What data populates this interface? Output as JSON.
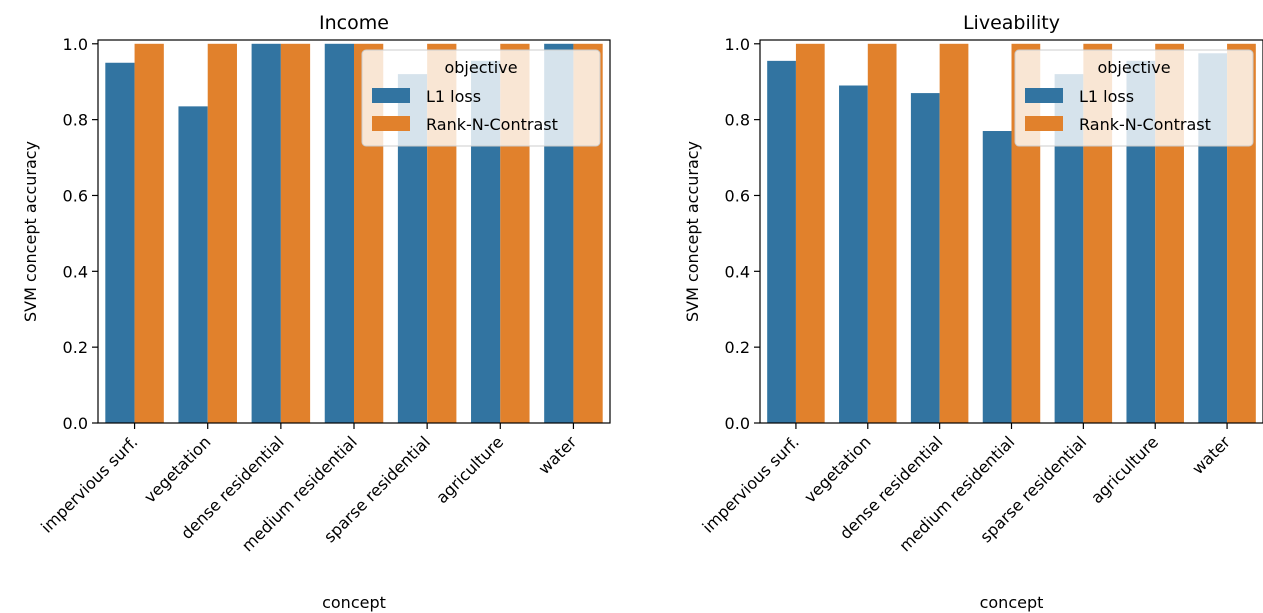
{
  "chart_data": [
    {
      "type": "bar",
      "title": "Income",
      "xlabel": "concept",
      "ylabel": "SVM concept accuracy",
      "ylim": [
        0,
        1.01
      ],
      "yticks": [
        "0.0",
        "0.2",
        "0.4",
        "0.6",
        "0.8",
        "1.0"
      ],
      "grid": false,
      "legend_position": "top-right",
      "legend_title": "objective",
      "categories": [
        "impervious surf.",
        "vegetation",
        "dense residential",
        "medium residential",
        "sparse residential",
        "agriculture",
        "water"
      ],
      "series": [
        {
          "name": "L1 loss",
          "color": "#3274a1",
          "values": [
            0.95,
            0.835,
            1.0,
            1.0,
            0.92,
            0.955,
            1.0
          ]
        },
        {
          "name": "Rank-N-Contrast",
          "color": "#e1812c",
          "values": [
            1.0,
            1.0,
            1.0,
            1.0,
            1.0,
            1.0,
            1.0
          ]
        }
      ]
    },
    {
      "type": "bar",
      "title": "Liveability",
      "xlabel": "concept",
      "ylabel": "SVM concept accuracy",
      "ylim": [
        0,
        1.01
      ],
      "yticks": [
        "0.0",
        "0.2",
        "0.4",
        "0.6",
        "0.8",
        "1.0"
      ],
      "grid": false,
      "legend_position": "top-right",
      "legend_title": "objective",
      "categories": [
        "impervious surf.",
        "vegetation",
        "dense residential",
        "medium residential",
        "sparse residential",
        "agriculture",
        "water"
      ],
      "series": [
        {
          "name": "L1 loss",
          "color": "#3274a1",
          "values": [
            0.955,
            0.89,
            0.87,
            0.77,
            0.92,
            0.955,
            0.975
          ]
        },
        {
          "name": "Rank-N-Contrast",
          "color": "#e1812c",
          "values": [
            1.0,
            1.0,
            1.0,
            1.0,
            1.0,
            1.0,
            1.0
          ]
        }
      ]
    }
  ]
}
